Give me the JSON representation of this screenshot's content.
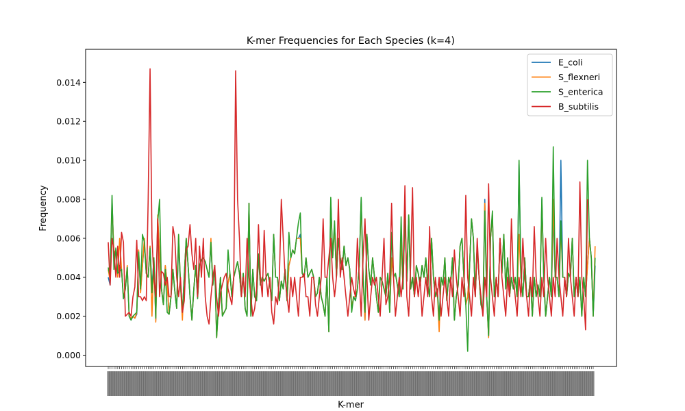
{
  "chart_data": {
    "type": "line",
    "title": "K-mer Frequencies for Each Species (k=4)",
    "xlabel": "K-mer",
    "ylabel": "Frequency",
    "ylim": [
      -0.00058,
      0.0157
    ],
    "yticks": [
      0.0,
      0.002,
      0.004,
      0.006,
      0.008,
      0.01,
      0.012,
      0.014
    ],
    "ytick_labels": [
      "0.000",
      "0.002",
      "0.004",
      "0.006",
      "0.008",
      "0.010",
      "0.012",
      "0.014"
    ],
    "x_count": 256,
    "x_tick_labels_note": "256 rotated 4-mer labels, overlapping and illegible in the original",
    "legend_position": "upper right",
    "grid": false,
    "series": [
      {
        "name": "E_coli",
        "color": "#1f77b4",
        "values": [
          0.004,
          0.0036,
          0.008,
          0.005,
          0.0054,
          0.0042,
          0.0046,
          0.0044,
          0.0029,
          0.0034,
          0.0045,
          0.002,
          0.0018,
          0.002,
          0.0019,
          0.0021,
          0.0052,
          0.0033,
          0.0046,
          0.0058,
          0.0042,
          0.004,
          0.0056,
          0.0034,
          0.005,
          0.0018,
          0.007,
          0.0052,
          0.0034,
          0.0026,
          0.0046,
          0.0037,
          0.0021,
          0.003,
          0.0044,
          0.0033,
          0.0024,
          0.0058,
          0.0036,
          0.0022,
          0.0041,
          0.006,
          0.0046,
          0.003,
          0.0018,
          0.0034,
          0.0046,
          0.003,
          0.0046,
          0.0049,
          0.005,
          0.0048,
          0.0044,
          0.004,
          0.0058,
          0.0036,
          0.0046,
          0.001,
          0.0026,
          0.004,
          0.0021,
          0.0022,
          0.0024,
          0.0037,
          0.0042,
          0.003,
          0.004,
          0.0044,
          0.0048,
          0.0042,
          0.003,
          0.0042,
          0.0024,
          0.002,
          0.0078,
          0.002,
          0.0044,
          0.003,
          0.0028,
          0.0052,
          0.0036,
          0.004,
          0.0038,
          0.004,
          0.0042,
          0.0036,
          0.0028,
          0.0062,
          0.004,
          0.004,
          0.0028,
          0.0038,
          0.0034,
          0.0044,
          0.0028,
          0.0046,
          0.005,
          0.0054,
          0.0052,
          0.006,
          0.006,
          0.0062,
          0.0042,
          0.004,
          0.005,
          0.004,
          0.0042,
          0.0044,
          0.004,
          0.003,
          0.0032,
          0.004,
          0.003,
          0.0026,
          0.002,
          0.004,
          0.0012,
          0.008,
          0.005,
          0.0066,
          0.004,
          0.006,
          0.005,
          0.0044,
          0.0056,
          0.0046,
          0.005,
          0.0044,
          0.0024,
          0.003,
          0.0028,
          0.0034,
          0.0046,
          0.008,
          0.004,
          0.0018,
          0.0062,
          0.0044,
          0.0036,
          0.005,
          0.004,
          0.003,
          0.0022,
          0.004,
          0.0038,
          0.0034,
          0.003,
          0.0042,
          0.0022,
          0.005,
          0.004,
          0.0042,
          0.0036,
          0.003,
          0.006,
          0.0034,
          0.0072,
          0.0038,
          0.0072,
          0.0034,
          0.004,
          0.003,
          0.0046,
          0.0042,
          0.0036,
          0.0046,
          0.004,
          0.005,
          0.0036,
          0.003,
          0.006,
          0.004,
          0.003,
          0.0034,
          0.0018,
          0.004,
          0.0036,
          0.005,
          0.0028,
          0.004,
          0.0036,
          0.005,
          0.0018,
          0.003,
          0.0036,
          0.0056,
          0.006,
          0.004,
          0.0026,
          0.003,
          0.0046,
          0.007,
          0.006,
          0.003,
          0.0056,
          0.004,
          0.0026,
          0.0022,
          0.008,
          0.003,
          0.001,
          0.006,
          0.0072,
          0.003,
          0.004,
          0.003,
          0.006,
          0.0042,
          0.0062,
          0.0034,
          0.005,
          0.003,
          0.004,
          0.0034,
          0.004,
          0.003,
          0.0098,
          0.004,
          0.003,
          0.005,
          0.003,
          0.003,
          0.004,
          0.002,
          0.004,
          0.003,
          0.0036,
          0.003,
          0.008,
          0.004,
          0.002,
          0.003,
          0.004,
          0.003,
          0.0072,
          0.004,
          0.004,
          0.003,
          0.01,
          0.004,
          0.004,
          0.003,
          0.0042,
          0.004,
          0.006,
          0.003,
          0.004,
          0.003,
          0.004,
          0.002,
          0.004,
          0.003,
          0.0046,
          0.006,
          0.005,
          0.002,
          0.0046
        ]
      },
      {
        "name": "S_flexneri",
        "color": "#ff7f0e",
        "values": [
          0.0044,
          0.0038,
          0.0078,
          0.0052,
          0.0054,
          0.004,
          0.006,
          0.0044,
          0.003,
          0.0034,
          0.0046,
          0.002,
          0.0019,
          0.002,
          0.0019,
          0.0022,
          0.0054,
          0.0032,
          0.0046,
          0.006,
          0.0042,
          0.004,
          0.0056,
          0.002,
          0.005,
          0.0017,
          0.0072,
          0.0052,
          0.0034,
          0.0026,
          0.0046,
          0.0036,
          0.0021,
          0.003,
          0.0044,
          0.0033,
          0.0024,
          0.0062,
          0.0036,
          0.0018,
          0.0041,
          0.006,
          0.0046,
          0.003,
          0.0018,
          0.0034,
          0.0046,
          0.003,
          0.0046,
          0.0049,
          0.005,
          0.0048,
          0.0044,
          0.004,
          0.006,
          0.0036,
          0.0046,
          0.0009,
          0.0026,
          0.004,
          0.0021,
          0.0022,
          0.0024,
          0.0037,
          0.0042,
          0.003,
          0.004,
          0.0044,
          0.0048,
          0.0042,
          0.003,
          0.0042,
          0.0024,
          0.002,
          0.0078,
          0.002,
          0.0044,
          0.003,
          0.0028,
          0.0052,
          0.0036,
          0.004,
          0.0038,
          0.004,
          0.0042,
          0.0036,
          0.0028,
          0.0062,
          0.004,
          0.004,
          0.0028,
          0.0038,
          0.0034,
          0.0044,
          0.0028,
          0.0046,
          0.005,
          0.0054,
          0.0052,
          0.006,
          0.006,
          0.006,
          0.0042,
          0.004,
          0.005,
          0.004,
          0.0042,
          0.0044,
          0.004,
          0.003,
          0.0032,
          0.004,
          0.003,
          0.0026,
          0.002,
          0.004,
          0.0012,
          0.0078,
          0.005,
          0.0066,
          0.004,
          0.006,
          0.005,
          0.0044,
          0.0056,
          0.0046,
          0.005,
          0.0044,
          0.0024,
          0.003,
          0.003,
          0.0034,
          0.0046,
          0.0078,
          0.004,
          0.0018,
          0.0062,
          0.0044,
          0.0036,
          0.005,
          0.004,
          0.003,
          0.0022,
          0.004,
          0.0038,
          0.0034,
          0.003,
          0.0042,
          0.0022,
          0.005,
          0.004,
          0.0042,
          0.0036,
          0.003,
          0.006,
          0.0034,
          0.0073,
          0.0038,
          0.0072,
          0.0034,
          0.004,
          0.003,
          0.0046,
          0.0042,
          0.0036,
          0.0046,
          0.004,
          0.005,
          0.0036,
          0.003,
          0.006,
          0.004,
          0.003,
          0.0034,
          0.0012,
          0.004,
          0.0036,
          0.005,
          0.0028,
          0.004,
          0.0036,
          0.005,
          0.0018,
          0.003,
          0.0036,
          0.0056,
          0.006,
          0.004,
          0.0026,
          0.003,
          0.0046,
          0.007,
          0.006,
          0.003,
          0.0056,
          0.004,
          0.0026,
          0.0022,
          0.0078,
          0.003,
          0.0009,
          0.006,
          0.0072,
          0.003,
          0.004,
          0.003,
          0.006,
          0.0042,
          0.0062,
          0.0034,
          0.005,
          0.003,
          0.004,
          0.0034,
          0.004,
          0.003,
          0.0062,
          0.004,
          0.003,
          0.005,
          0.003,
          0.003,
          0.004,
          0.002,
          0.004,
          0.003,
          0.0036,
          0.003,
          0.0078,
          0.004,
          0.002,
          0.003,
          0.004,
          0.003,
          0.008,
          0.004,
          0.004,
          0.003,
          0.0066,
          0.004,
          0.004,
          0.003,
          0.0042,
          0.004,
          0.006,
          0.003,
          0.004,
          0.003,
          0.004,
          0.002,
          0.004,
          0.003,
          0.0046,
          0.006,
          0.005,
          0.002,
          0.0056
        ]
      },
      {
        "name": "S_enterica",
        "color": "#2ca02c",
        "values": [
          0.0045,
          0.004,
          0.0082,
          0.0044,
          0.0055,
          0.0042,
          0.0043,
          0.0044,
          0.0029,
          0.0034,
          0.0045,
          0.002,
          0.0018,
          0.002,
          0.0021,
          0.0022,
          0.0053,
          0.0034,
          0.0062,
          0.0058,
          0.0042,
          0.004,
          0.0055,
          0.0032,
          0.005,
          0.0019,
          0.0068,
          0.008,
          0.0034,
          0.0026,
          0.0044,
          0.0022,
          0.0021,
          0.003,
          0.0044,
          0.0033,
          0.0024,
          0.0062,
          0.0036,
          0.0022,
          0.0041,
          0.006,
          0.0046,
          0.003,
          0.0018,
          0.0034,
          0.0046,
          0.0029,
          0.0046,
          0.0049,
          0.005,
          0.0048,
          0.0044,
          0.004,
          0.0058,
          0.0036,
          0.0046,
          0.0009,
          0.0026,
          0.004,
          0.002,
          0.0022,
          0.0024,
          0.0054,
          0.0042,
          0.003,
          0.004,
          0.0044,
          0.0048,
          0.0042,
          0.003,
          0.0042,
          0.0024,
          0.002,
          0.0078,
          0.002,
          0.0044,
          0.003,
          0.0028,
          0.0052,
          0.0036,
          0.004,
          0.0038,
          0.004,
          0.0042,
          0.0036,
          0.0028,
          0.0062,
          0.004,
          0.004,
          0.0028,
          0.0038,
          0.0034,
          0.0044,
          0.0028,
          0.0063,
          0.005,
          0.0054,
          0.0052,
          0.006,
          0.0068,
          0.0073,
          0.0042,
          0.004,
          0.005,
          0.004,
          0.0042,
          0.0044,
          0.004,
          0.003,
          0.0032,
          0.004,
          0.003,
          0.0026,
          0.002,
          0.004,
          0.0012,
          0.0081,
          0.005,
          0.0069,
          0.004,
          0.006,
          0.005,
          0.0044,
          0.0056,
          0.0046,
          0.005,
          0.0044,
          0.0022,
          0.003,
          0.0028,
          0.0034,
          0.0046,
          0.0081,
          0.004,
          0.0022,
          0.0062,
          0.0044,
          0.0036,
          0.005,
          0.004,
          0.003,
          0.0022,
          0.004,
          0.0038,
          0.0034,
          0.003,
          0.0042,
          0.0022,
          0.0063,
          0.004,
          0.0042,
          0.0036,
          0.003,
          0.0071,
          0.0034,
          0.0074,
          0.0038,
          0.0072,
          0.0034,
          0.004,
          0.003,
          0.0046,
          0.0042,
          0.0036,
          0.0046,
          0.004,
          0.005,
          0.0036,
          0.003,
          0.006,
          0.004,
          0.003,
          0.0034,
          0.0018,
          0.004,
          0.0036,
          0.005,
          0.0028,
          0.004,
          0.0036,
          0.005,
          0.0018,
          0.003,
          0.0036,
          0.0056,
          0.006,
          0.004,
          0.0026,
          0.0002,
          0.0046,
          0.007,
          0.006,
          0.003,
          0.0056,
          0.004,
          0.0026,
          0.0022,
          0.0074,
          0.003,
          0.001,
          0.006,
          0.0074,
          0.003,
          0.004,
          0.003,
          0.006,
          0.0042,
          0.0062,
          0.0034,
          0.005,
          0.003,
          0.004,
          0.0034,
          0.004,
          0.003,
          0.01,
          0.004,
          0.003,
          0.005,
          0.003,
          0.003,
          0.004,
          0.002,
          0.004,
          0.003,
          0.0036,
          0.003,
          0.0081,
          0.004,
          0.002,
          0.003,
          0.004,
          0.003,
          0.0107,
          0.004,
          0.004,
          0.003,
          0.0069,
          0.004,
          0.004,
          0.003,
          0.0042,
          0.004,
          0.006,
          0.003,
          0.004,
          0.003,
          0.004,
          0.002,
          0.004,
          0.003,
          0.01,
          0.006,
          0.005,
          0.002,
          0.005
        ]
      },
      {
        "name": "B_subtilis",
        "color": "#d62728",
        "values": [
          0.0058,
          0.0036,
          0.006,
          0.0054,
          0.004,
          0.0056,
          0.004,
          0.0063,
          0.0058,
          0.002,
          0.0021,
          0.0022,
          0.002,
          0.003,
          0.0035,
          0.0059,
          0.003,
          0.003,
          0.0028,
          0.003,
          0.0028,
          0.008,
          0.0147,
          0.006,
          0.004,
          0.003,
          0.007,
          0.003,
          0.0043,
          0.0042,
          0.0036,
          0.004,
          0.003,
          0.003,
          0.0066,
          0.006,
          0.004,
          0.003,
          0.004,
          0.0022,
          0.0028,
          0.0054,
          0.0056,
          0.0067,
          0.0052,
          0.0044,
          0.006,
          0.003,
          0.0056,
          0.004,
          0.006,
          0.003,
          0.002,
          0.0016,
          0.003,
          0.004,
          0.0046,
          0.003,
          0.002,
          0.0032,
          0.0036,
          0.004,
          0.0042,
          0.0034,
          0.003,
          0.0026,
          0.004,
          0.0146,
          0.008,
          0.006,
          0.003,
          0.004,
          0.003,
          0.006,
          0.004,
          0.003,
          0.002,
          0.0024,
          0.0034,
          0.0067,
          0.004,
          0.003,
          0.0064,
          0.004,
          0.003,
          0.004,
          0.0022,
          0.0016,
          0.003,
          0.0026,
          0.004,
          0.008,
          0.006,
          0.004,
          0.003,
          0.0022,
          0.004,
          0.003,
          0.004,
          0.003,
          0.002,
          0.004,
          0.004,
          0.0042,
          0.003,
          0.003,
          0.002,
          0.004,
          0.004,
          0.0026,
          0.002,
          0.003,
          0.004,
          0.007,
          0.004,
          0.004,
          0.005,
          0.006,
          0.004,
          0.003,
          0.004,
          0.008,
          0.004,
          0.005,
          0.004,
          0.003,
          0.002,
          0.003,
          0.004,
          0.0034,
          0.003,
          0.006,
          0.004,
          0.002,
          0.005,
          0.007,
          0.004,
          0.0018,
          0.003,
          0.004,
          0.0036,
          0.004,
          0.003,
          0.002,
          0.004,
          0.006,
          0.0026,
          0.003,
          0.004,
          0.0078,
          0.004,
          0.002,
          0.003,
          0.004,
          0.003,
          0.004,
          0.0087,
          0.003,
          0.002,
          0.0046,
          0.0086,
          0.003,
          0.004,
          0.003,
          0.004,
          0.002,
          0.003,
          0.004,
          0.003,
          0.0066,
          0.003,
          0.002,
          0.004,
          0.003,
          0.004,
          0.002,
          0.003,
          0.004,
          0.003,
          0.002,
          0.004,
          0.003,
          0.0054,
          0.004,
          0.003,
          0.002,
          0.004,
          0.003,
          0.0082,
          0.004,
          0.003,
          0.002,
          0.004,
          0.003,
          0.006,
          0.004,
          0.003,
          0.002,
          0.004,
          0.003,
          0.0088,
          0.004,
          0.003,
          0.002,
          0.004,
          0.003,
          0.006,
          0.004,
          0.003,
          0.002,
          0.004,
          0.003,
          0.007,
          0.004,
          0.003,
          0.002,
          0.004,
          0.003,
          0.006,
          0.004,
          0.003,
          0.002,
          0.004,
          0.003,
          0.0066,
          0.004,
          0.003,
          0.002,
          0.004,
          0.003,
          0.006,
          0.004,
          0.003,
          0.002,
          0.004,
          0.003,
          0.006,
          0.004,
          0.003,
          0.002,
          0.004,
          0.003,
          0.006,
          0.004,
          0.003,
          0.002,
          0.004,
          0.003,
          0.0089,
          0.004,
          0.003,
          0.0013,
          0.008
        ]
      }
    ]
  }
}
